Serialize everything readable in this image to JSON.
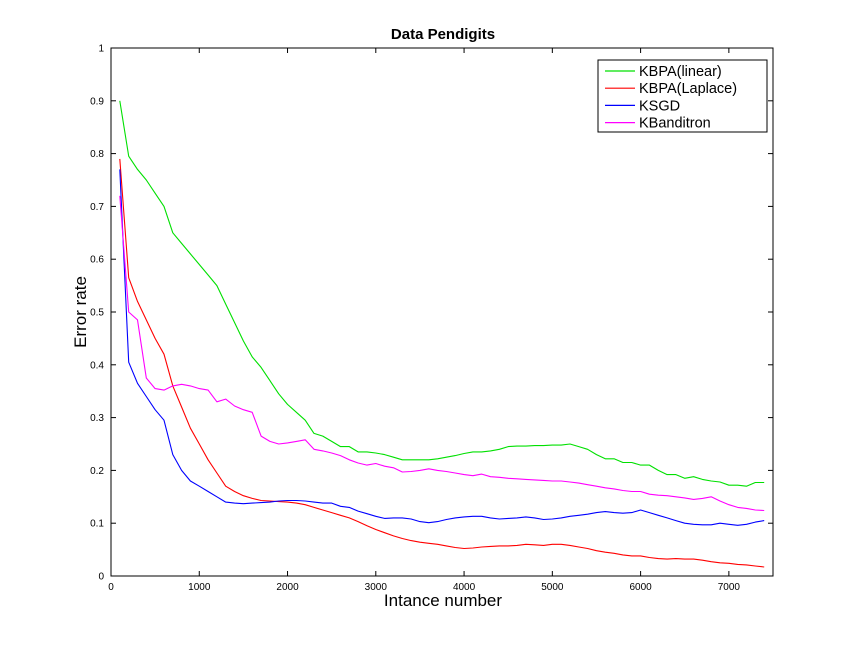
{
  "chart_data": {
    "type": "line",
    "title": "Data Pendigits",
    "xlabel": "Intance number",
    "ylabel": "Error rate",
    "xlim": [
      0,
      7500
    ],
    "ylim": [
      0,
      1
    ],
    "xticks": [
      0,
      1000,
      2000,
      3000,
      4000,
      5000,
      6000,
      7000
    ],
    "yticks": [
      0,
      0.1,
      0.2,
      0.3,
      0.4,
      0.5,
      0.6,
      0.7,
      0.8,
      0.9,
      1
    ],
    "xtick_labels": [
      "0",
      "1000",
      "2000",
      "3000",
      "4000",
      "5000",
      "6000",
      "7000"
    ],
    "ytick_labels": [
      "0",
      "0.1",
      "0.2",
      "0.3",
      "0.4",
      "0.5",
      "0.6",
      "0.7",
      "0.8",
      "0.9",
      "1"
    ],
    "grid": false,
    "legend_position": "top-right",
    "series": [
      {
        "name": "KBPA(linear)",
        "color": "#00e000",
        "x": [
          100,
          200,
          300,
          400,
          500,
          600,
          700,
          800,
          900,
          1000,
          1100,
          1200,
          1300,
          1400,
          1500,
          1600,
          1700,
          1800,
          1900,
          2000,
          2100,
          2200,
          2300,
          2400,
          2500,
          2600,
          2700,
          2800,
          2900,
          3000,
          3100,
          3200,
          3300,
          3400,
          3500,
          3600,
          3700,
          3800,
          3900,
          4000,
          4100,
          4200,
          4300,
          4400,
          4500,
          4600,
          4700,
          4800,
          4900,
          5000,
          5100,
          5200,
          5300,
          5400,
          5500,
          5600,
          5700,
          5800,
          5900,
          6000,
          6100,
          6200,
          6300,
          6400,
          6500,
          6600,
          6700,
          6800,
          6900,
          7000,
          7100,
          7200,
          7300,
          7400
        ],
        "values": [
          0.9,
          0.795,
          0.77,
          0.75,
          0.725,
          0.7,
          0.65,
          0.63,
          0.61,
          0.59,
          0.57,
          0.55,
          0.515,
          0.48,
          0.445,
          0.415,
          0.395,
          0.37,
          0.345,
          0.325,
          0.31,
          0.295,
          0.27,
          0.265,
          0.255,
          0.245,
          0.245,
          0.235,
          0.235,
          0.233,
          0.23,
          0.225,
          0.22,
          0.22,
          0.22,
          0.22,
          0.222,
          0.225,
          0.228,
          0.232,
          0.235,
          0.235,
          0.237,
          0.24,
          0.245,
          0.246,
          0.246,
          0.247,
          0.247,
          0.248,
          0.248,
          0.25,
          0.245,
          0.24,
          0.23,
          0.222,
          0.222,
          0.215,
          0.215,
          0.21,
          0.21,
          0.2,
          0.192,
          0.192,
          0.185,
          0.188,
          0.183,
          0.18,
          0.178,
          0.172,
          0.172,
          0.17,
          0.177,
          0.177
        ]
      },
      {
        "name": "KBPA(Laplace)",
        "color": "#ff0000",
        "x": [
          100,
          200,
          300,
          400,
          500,
          600,
          700,
          800,
          900,
          1000,
          1100,
          1200,
          1300,
          1400,
          1500,
          1600,
          1700,
          1800,
          1900,
          2000,
          2100,
          2200,
          2300,
          2400,
          2500,
          2600,
          2700,
          2800,
          2900,
          3000,
          3100,
          3200,
          3300,
          3400,
          3500,
          3600,
          3700,
          3800,
          3900,
          4000,
          4100,
          4200,
          4300,
          4400,
          4500,
          4600,
          4700,
          4800,
          4900,
          5000,
          5100,
          5200,
          5300,
          5400,
          5500,
          5600,
          5700,
          5800,
          5900,
          6000,
          6100,
          6200,
          6300,
          6400,
          6500,
          6600,
          6700,
          6800,
          6900,
          7000,
          7100,
          7200,
          7300,
          7400
        ],
        "values": [
          0.79,
          0.565,
          0.52,
          0.485,
          0.45,
          0.42,
          0.36,
          0.32,
          0.28,
          0.25,
          0.22,
          0.195,
          0.17,
          0.16,
          0.152,
          0.147,
          0.143,
          0.142,
          0.141,
          0.14,
          0.138,
          0.135,
          0.13,
          0.125,
          0.12,
          0.115,
          0.11,
          0.103,
          0.095,
          0.088,
          0.082,
          0.076,
          0.071,
          0.067,
          0.064,
          0.062,
          0.06,
          0.057,
          0.054,
          0.052,
          0.053,
          0.055,
          0.056,
          0.057,
          0.057,
          0.058,
          0.06,
          0.059,
          0.058,
          0.06,
          0.06,
          0.058,
          0.055,
          0.052,
          0.048,
          0.045,
          0.043,
          0.04,
          0.038,
          0.038,
          0.035,
          0.033,
          0.032,
          0.033,
          0.032,
          0.032,
          0.03,
          0.027,
          0.025,
          0.024,
          0.022,
          0.021,
          0.019,
          0.017
        ]
      },
      {
        "name": "KSGD",
        "color": "#0000ff",
        "x": [
          100,
          200,
          300,
          400,
          500,
          600,
          700,
          800,
          900,
          1000,
          1100,
          1200,
          1300,
          1400,
          1500,
          1600,
          1700,
          1800,
          1900,
          2000,
          2100,
          2200,
          2300,
          2400,
          2500,
          2600,
          2700,
          2800,
          2900,
          3000,
          3100,
          3200,
          3300,
          3400,
          3500,
          3600,
          3700,
          3800,
          3900,
          4000,
          4100,
          4200,
          4300,
          4400,
          4500,
          4600,
          4700,
          4800,
          4900,
          5000,
          5100,
          5200,
          5300,
          5400,
          5500,
          5600,
          5700,
          5800,
          5900,
          6000,
          6100,
          6200,
          6300,
          6400,
          6500,
          6600,
          6700,
          6800,
          6900,
          7000,
          7100,
          7200,
          7300,
          7400
        ],
        "values": [
          0.77,
          0.405,
          0.365,
          0.34,
          0.315,
          0.295,
          0.23,
          0.2,
          0.18,
          0.17,
          0.16,
          0.15,
          0.14,
          0.138,
          0.137,
          0.138,
          0.139,
          0.14,
          0.142,
          0.143,
          0.143,
          0.142,
          0.14,
          0.138,
          0.138,
          0.132,
          0.13,
          0.123,
          0.118,
          0.113,
          0.109,
          0.11,
          0.11,
          0.108,
          0.103,
          0.101,
          0.103,
          0.107,
          0.11,
          0.112,
          0.113,
          0.113,
          0.11,
          0.108,
          0.109,
          0.11,
          0.112,
          0.11,
          0.107,
          0.108,
          0.11,
          0.113,
          0.115,
          0.117,
          0.12,
          0.122,
          0.12,
          0.119,
          0.12,
          0.125,
          0.12,
          0.115,
          0.11,
          0.105,
          0.1,
          0.098,
          0.097,
          0.097,
          0.1,
          0.098,
          0.096,
          0.098,
          0.102,
          0.105
        ]
      },
      {
        "name": "KBanditron",
        "color": "#ff00ff",
        "x": [
          100,
          200,
          300,
          400,
          500,
          600,
          700,
          800,
          900,
          1000,
          1100,
          1200,
          1300,
          1400,
          1500,
          1600,
          1700,
          1800,
          1900,
          2000,
          2100,
          2200,
          2300,
          2400,
          2500,
          2600,
          2700,
          2800,
          2900,
          3000,
          3100,
          3200,
          3300,
          3400,
          3500,
          3600,
          3700,
          3800,
          3900,
          4000,
          4100,
          4200,
          4300,
          4400,
          4500,
          4600,
          4700,
          4800,
          4900,
          5000,
          5100,
          5200,
          5300,
          5400,
          5500,
          5600,
          5700,
          5800,
          5900,
          6000,
          6100,
          6200,
          6300,
          6400,
          6500,
          6600,
          6700,
          6800,
          6900,
          7000,
          7100,
          7200,
          7300,
          7400
        ],
        "values": [
          0.72,
          0.5,
          0.485,
          0.375,
          0.355,
          0.352,
          0.36,
          0.363,
          0.36,
          0.355,
          0.352,
          0.33,
          0.335,
          0.322,
          0.315,
          0.31,
          0.265,
          0.255,
          0.25,
          0.252,
          0.255,
          0.258,
          0.24,
          0.237,
          0.233,
          0.228,
          0.22,
          0.214,
          0.21,
          0.213,
          0.208,
          0.205,
          0.197,
          0.198,
          0.2,
          0.203,
          0.2,
          0.198,
          0.195,
          0.192,
          0.19,
          0.193,
          0.188,
          0.187,
          0.185,
          0.184,
          0.183,
          0.182,
          0.181,
          0.18,
          0.18,
          0.178,
          0.176,
          0.173,
          0.17,
          0.167,
          0.165,
          0.162,
          0.16,
          0.16,
          0.155,
          0.153,
          0.152,
          0.15,
          0.148,
          0.145,
          0.147,
          0.15,
          0.142,
          0.135,
          0.13,
          0.128,
          0.125,
          0.124
        ]
      }
    ]
  }
}
